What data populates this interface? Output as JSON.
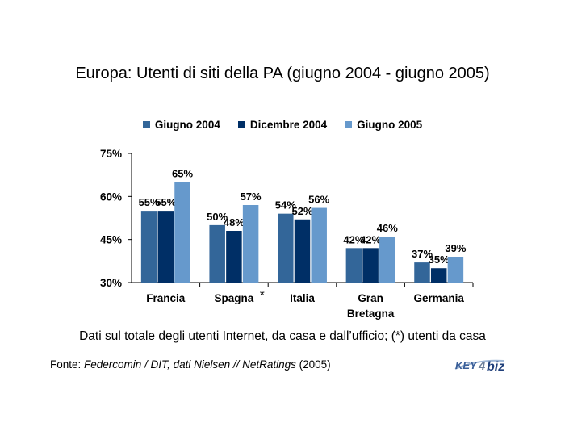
{
  "title": "Europa: Utenti di siti della PA (giugno 2004 - giugno 2005)",
  "note": "Dati sul totale degli utenti Internet, da casa e dall’ufficio; (*) utenti da casa",
  "source": {
    "prefix": "Fonte: ",
    "org": "Federcomin / DIT, dati Nielsen // NetRatings",
    "year": " (2005)"
  },
  "logo": {
    "text": "KEY4biz",
    "key_text": "KEY",
    "four_text": "4",
    "biz_text": "biz"
  },
  "colors": {
    "giugno2004": "#336699",
    "dicembre2004": "#002F66",
    "giugno2005": "#6699CC"
  },
  "chart_data": {
    "type": "bar",
    "categories": [
      "Francia",
      "Spagna",
      "Italia",
      "Gran Bretagna",
      "Germania"
    ],
    "category_labels": [
      [
        "Francia"
      ],
      [
        "Spagna"
      ],
      [
        "Italia"
      ],
      [
        "Gran",
        "Bretagna"
      ],
      [
        "Germania"
      ]
    ],
    "category_marks": [
      "",
      "*",
      "",
      "",
      ""
    ],
    "series": [
      {
        "name": "Giugno 2004",
        "values": [
          55,
          50,
          54,
          42,
          37
        ]
      },
      {
        "name": "Dicembre 2004",
        "values": [
          55,
          48,
          52,
          42,
          35
        ]
      },
      {
        "name": "Giugno 2005",
        "values": [
          65,
          57,
          56,
          46,
          39
        ]
      }
    ],
    "ylim": [
      30,
      75
    ],
    "yticks": [
      30,
      45,
      60,
      75
    ],
    "tick_suffix": "%",
    "value_suffix": "%",
    "legend": "top",
    "grid": false
  }
}
